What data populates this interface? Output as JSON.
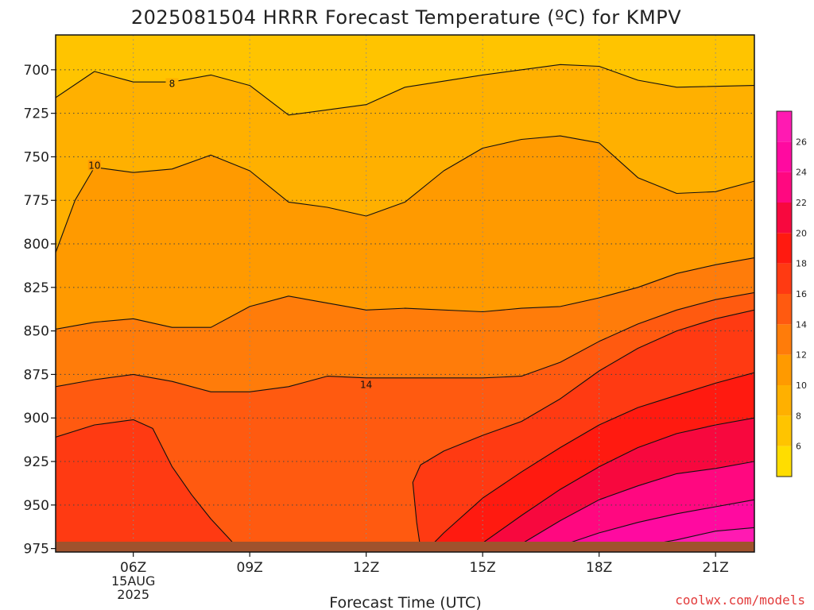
{
  "title": "2025081504 HRRR Forecast Temperature (ºC) for KMPV",
  "credit": "coolwx.com/models",
  "chart_data": {
    "type": "heatmap",
    "title": "2025081504 HRRR Forecast Temperature (ºC) for KMPV",
    "xlabel": "Forecast Time (UTC)",
    "ylabel": "",
    "x_ticks": [
      {
        "hour": 6,
        "label": "06Z",
        "sub": [
          "15AUG",
          "2025"
        ]
      },
      {
        "hour": 9,
        "label": "09Z"
      },
      {
        "hour": 12,
        "label": "12Z"
      },
      {
        "hour": 15,
        "label": "15Z"
      },
      {
        "hour": 18,
        "label": "18Z"
      },
      {
        "hour": 21,
        "label": "21Z"
      }
    ],
    "xlim": [
      4,
      22
    ],
    "ylim": [
      680,
      977
    ],
    "y_ticks": [
      700,
      725,
      750,
      775,
      800,
      825,
      850,
      875,
      900,
      925,
      950,
      975
    ],
    "contour_levels": [
      8,
      10,
      12,
      14,
      16,
      18,
      20,
      22,
      24,
      26
    ],
    "contour_labels": [
      {
        "value": 8,
        "x": 7,
        "y": 708
      },
      {
        "value": 10,
        "x": 5,
        "y": 755
      },
      {
        "value": 14,
        "x": 12,
        "y": 881
      }
    ],
    "contours": [
      {
        "level": 8,
        "points": [
          [
            4,
            716
          ],
          [
            5,
            701
          ],
          [
            6,
            707
          ],
          [
            7,
            707
          ],
          [
            8,
            703
          ],
          [
            9,
            709
          ],
          [
            10,
            726
          ],
          [
            11,
            723
          ],
          [
            12,
            720
          ],
          [
            13,
            710
          ],
          [
            15,
            703
          ],
          [
            17,
            697
          ],
          [
            18,
            698
          ],
          [
            19,
            706
          ],
          [
            20,
            710
          ],
          [
            22,
            709
          ]
        ]
      },
      {
        "level": 10,
        "points": [
          [
            4,
            805
          ],
          [
            4.5,
            775
          ],
          [
            5,
            756
          ],
          [
            6,
            759
          ],
          [
            7,
            757
          ],
          [
            8,
            749
          ],
          [
            9,
            758
          ],
          [
            10,
            776
          ],
          [
            11,
            779
          ],
          [
            12,
            784
          ],
          [
            13,
            776
          ],
          [
            14,
            758
          ],
          [
            15,
            745
          ],
          [
            16,
            740
          ],
          [
            17,
            738
          ],
          [
            18,
            742
          ],
          [
            19,
            762
          ],
          [
            20,
            771
          ],
          [
            21,
            770
          ],
          [
            22,
            764
          ]
        ]
      },
      {
        "level": 12,
        "points": [
          [
            4,
            849
          ],
          [
            5,
            845
          ],
          [
            6,
            843
          ],
          [
            7,
            848
          ],
          [
            8,
            848
          ],
          [
            9,
            836
          ],
          [
            10,
            830
          ],
          [
            11,
            834
          ],
          [
            12,
            838
          ],
          [
            13,
            837
          ],
          [
            15,
            839
          ],
          [
            16,
            837
          ],
          [
            17,
            836
          ],
          [
            18,
            831
          ],
          [
            19,
            825
          ],
          [
            20,
            817
          ],
          [
            21,
            812
          ],
          [
            22,
            808
          ]
        ]
      },
      {
        "level": 14,
        "points": [
          [
            4,
            882
          ],
          [
            5,
            878
          ],
          [
            6,
            875
          ],
          [
            7,
            879
          ],
          [
            8,
            885
          ],
          [
            9,
            885
          ],
          [
            10,
            882
          ],
          [
            11,
            876
          ],
          [
            12,
            877
          ],
          [
            14,
            877
          ],
          [
            15,
            877
          ],
          [
            16,
            876
          ],
          [
            17,
            868
          ],
          [
            18,
            856
          ],
          [
            19,
            846
          ],
          [
            20,
            838
          ],
          [
            21,
            832
          ],
          [
            22,
            828
          ]
        ]
      },
      {
        "level": 16,
        "points": [
          [
            4,
            911
          ],
          [
            5,
            904
          ],
          [
            6,
            901
          ],
          [
            6.5,
            906
          ],
          [
            7,
            928
          ],
          [
            7.5,
            944
          ],
          [
            8,
            958
          ],
          [
            8.5,
            970
          ],
          [
            8.7,
            975
          ]
        ]
      },
      {
        "level": 16,
        "points": [
          [
            13.4,
            975
          ],
          [
            13.3,
            960
          ],
          [
            13.2,
            937
          ],
          [
            13.4,
            927
          ],
          [
            14,
            919
          ],
          [
            15,
            910
          ],
          [
            16,
            902
          ],
          [
            17,
            889
          ],
          [
            18,
            873
          ],
          [
            19,
            860
          ],
          [
            20,
            850
          ],
          [
            21,
            843
          ],
          [
            22,
            838
          ]
        ]
      },
      {
        "level": 18,
        "points": [
          [
            13.6,
            975
          ],
          [
            14,
            966
          ],
          [
            15,
            946
          ],
          [
            16,
            931
          ],
          [
            17,
            917
          ],
          [
            18,
            904
          ],
          [
            19,
            894
          ],
          [
            20,
            887
          ],
          [
            21,
            880
          ],
          [
            22,
            874
          ]
        ]
      },
      {
        "level": 20,
        "points": [
          [
            14.8,
            975
          ],
          [
            16,
            956
          ],
          [
            17,
            941
          ],
          [
            18,
            928
          ],
          [
            19,
            917
          ],
          [
            20,
            909
          ],
          [
            21,
            904
          ],
          [
            22,
            900
          ]
        ]
      },
      {
        "level": 22,
        "points": [
          [
            15.8,
            975
          ],
          [
            17,
            959
          ],
          [
            18,
            947
          ],
          [
            19,
            939
          ],
          [
            20,
            932
          ],
          [
            21,
            929
          ],
          [
            22,
            925
          ]
        ]
      },
      {
        "level": 24,
        "points": [
          [
            16.8,
            975
          ],
          [
            18,
            966
          ],
          [
            19,
            960
          ],
          [
            20,
            955
          ],
          [
            21,
            951
          ],
          [
            22,
            947
          ]
        ]
      },
      {
        "level": 26,
        "points": [
          [
            18.7,
            975
          ],
          [
            19.5,
            972
          ],
          [
            20,
            970
          ],
          [
            21,
            965
          ],
          [
            22,
            963
          ]
        ]
      }
    ],
    "colorbar": {
      "ticks": [
        6,
        8,
        10,
        12,
        14,
        16,
        18,
        20,
        22,
        24,
        26
      ],
      "range": [
        4,
        28
      ],
      "colors": [
        {
          "from": 4,
          "to": 6,
          "color": "#ffdd00"
        },
        {
          "from": 6,
          "to": 8,
          "color": "#ffc400"
        },
        {
          "from": 8,
          "to": 10,
          "color": "#ffb000"
        },
        {
          "from": 10,
          "to": 12,
          "color": "#ff9a00"
        },
        {
          "from": 12,
          "to": 14,
          "color": "#ff7c0a"
        },
        {
          "from": 14,
          "to": 16,
          "color": "#ff5a10"
        },
        {
          "from": 16,
          "to": 18,
          "color": "#ff3a12"
        },
        {
          "from": 18,
          "to": 20,
          "color": "#ff1a10"
        },
        {
          "from": 20,
          "to": 22,
          "color": "#f7083e"
        },
        {
          "from": 22,
          "to": 24,
          "color": "#ff0880"
        },
        {
          "from": 24,
          "to": 26,
          "color": "#ff0aa0"
        },
        {
          "from": 26,
          "to": 28,
          "color": "#ff1ab2"
        }
      ]
    },
    "ground_color": "#a0522d",
    "grid": true
  }
}
